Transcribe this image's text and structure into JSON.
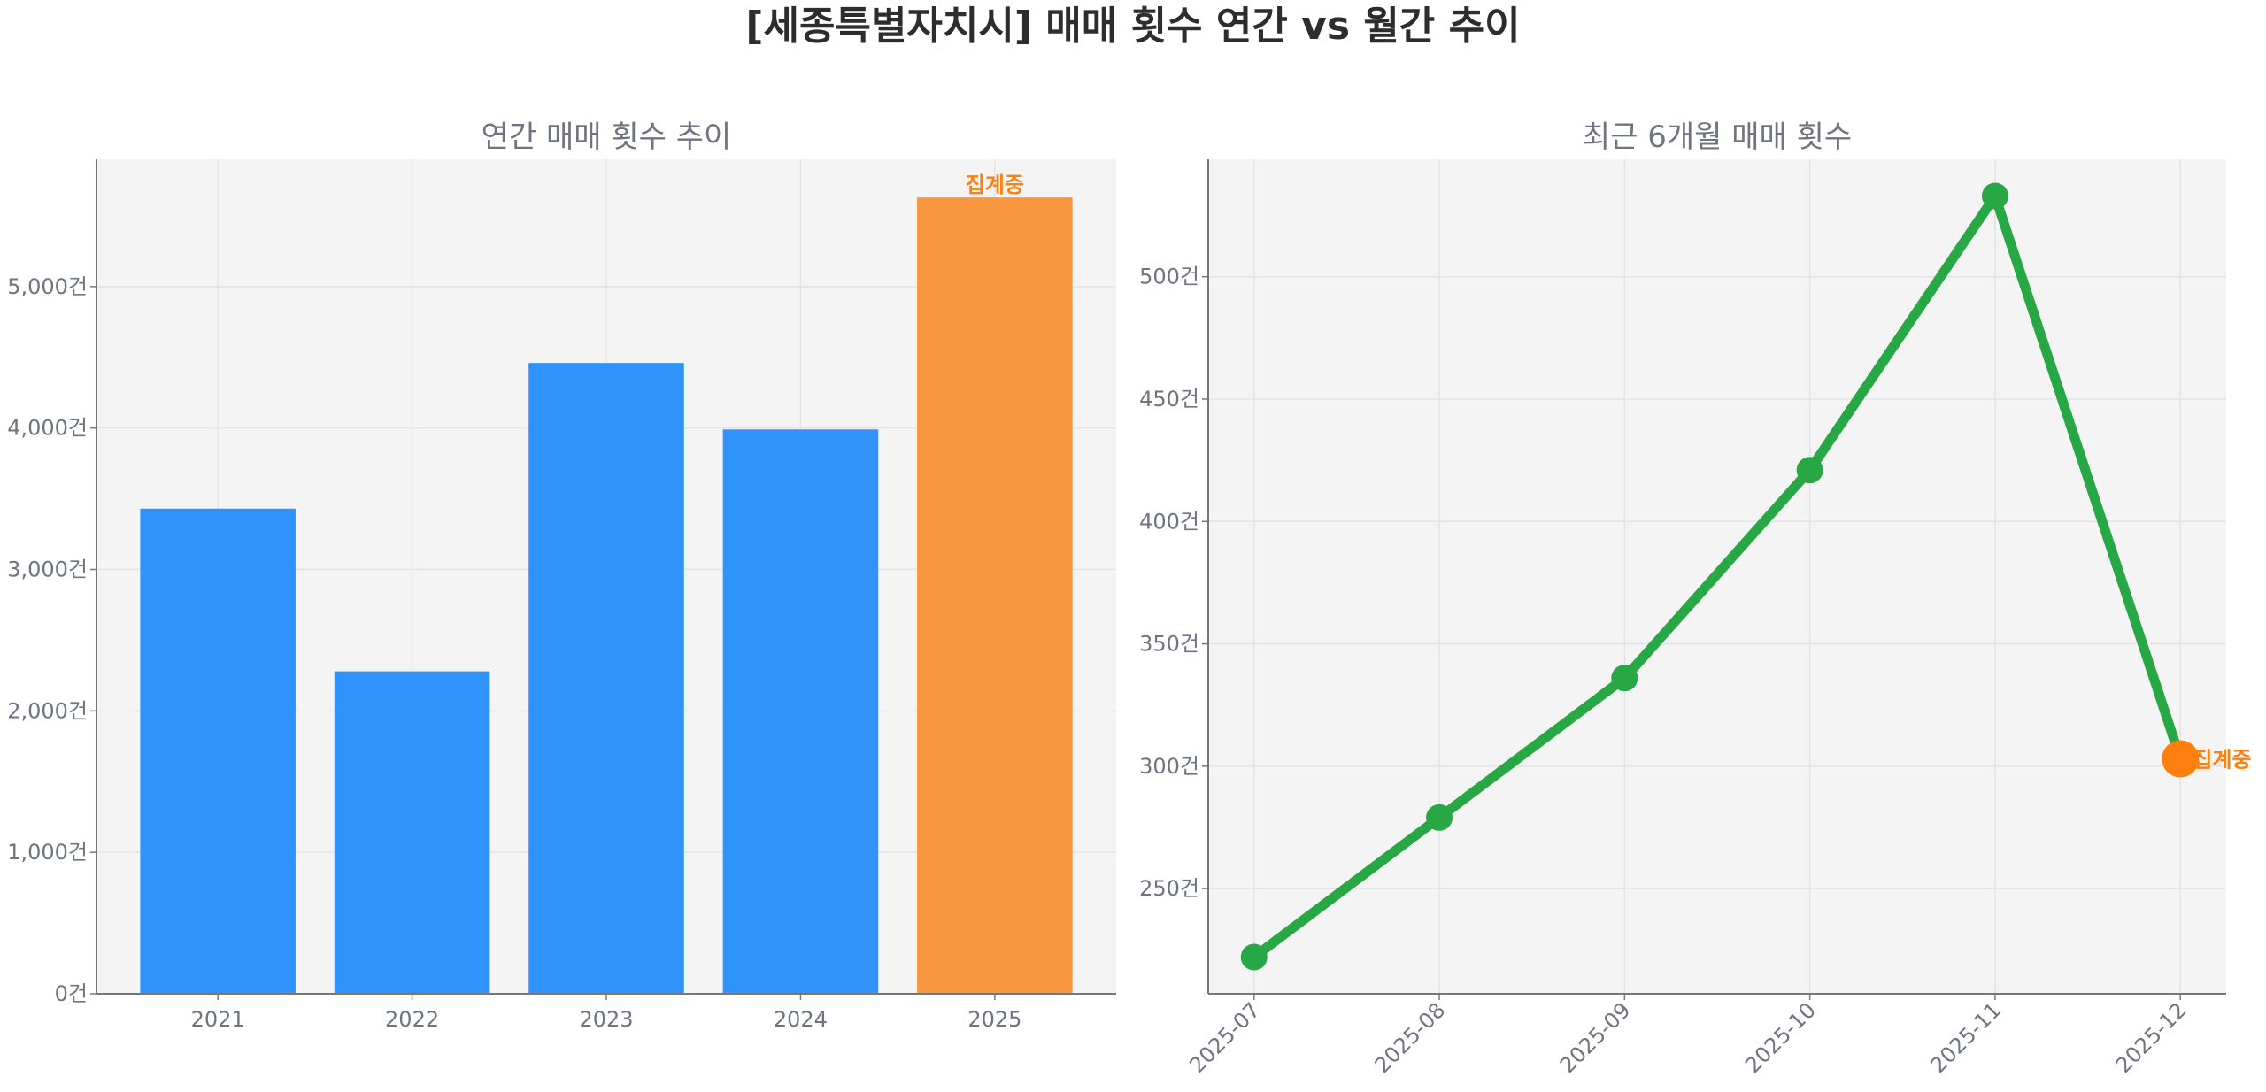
{
  "title": "[세종특별자치시] 매매 횟수 연간 vs 월간 추이",
  "chart_data": [
    {
      "type": "bar",
      "title": "연간 매매 횟수 추이",
      "categories": [
        "2021",
        "2022",
        "2023",
        "2024",
        "2025"
      ],
      "values": [
        3430,
        2280,
        4460,
        3990,
        5630
      ],
      "colors": [
        "#3093fb",
        "#3093fb",
        "#3093fb",
        "#3093fb",
        "#f99740"
      ],
      "ylim": [
        0,
        5900
      ],
      "yticks": [
        0,
        1000,
        2000,
        3000,
        4000,
        5000
      ],
      "ytick_labels": [
        "0건",
        "1,000건",
        "2,000건",
        "3,000건",
        "4,000건",
        "5,000건"
      ],
      "annotations": [
        {
          "category": "2025",
          "text": "집계중",
          "color": "#ff7f0e"
        }
      ],
      "grid": true
    },
    {
      "type": "line",
      "title": "최근 6개월 매매 횟수",
      "x": [
        "2025-07",
        "2025-08",
        "2025-09",
        "2025-10",
        "2025-11",
        "2025-12"
      ],
      "values": [
        222,
        279,
        336,
        421,
        533,
        303
      ],
      "line_color": "#28a745",
      "highlight_color": "#ff7f0e",
      "ylim": [
        207,
        548
      ],
      "yticks": [
        250,
        300,
        350,
        400,
        450,
        500
      ],
      "ytick_labels": [
        "250건",
        "300건",
        "350건",
        "400건",
        "450건",
        "500건"
      ],
      "annotations": [
        {
          "x": "2025-12",
          "text": "집계중",
          "color": "#ff7f0e"
        }
      ],
      "grid": true
    }
  ]
}
